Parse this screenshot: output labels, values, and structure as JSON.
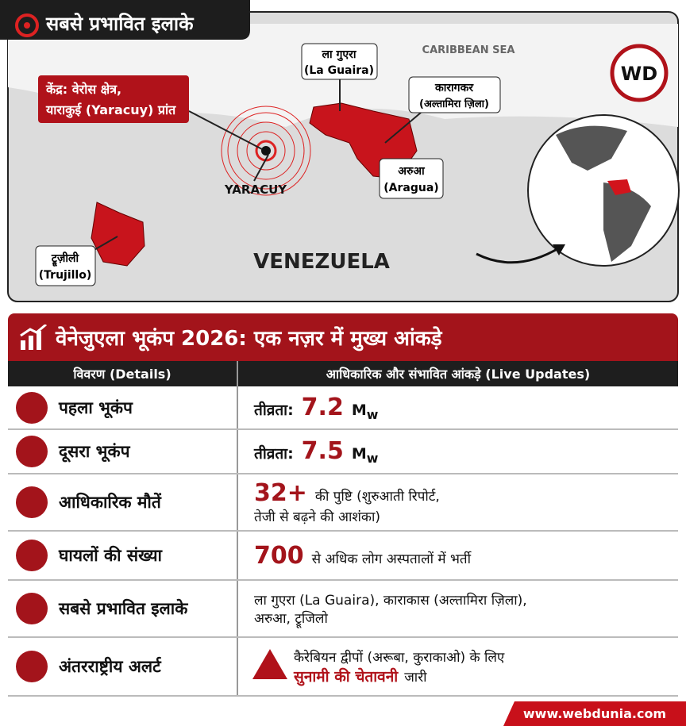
{
  "map": {
    "title": "सबसे प्रभावित इलाके",
    "logo": "WD",
    "sea": "CARIBBEAN SEA",
    "country": "VENEZUELA",
    "epicenter": "YARACUY",
    "center_label": [
      "केंद्र: वेरोस क्षेत्र,",
      "याराकुई (Yaracuy) प्रांत"
    ],
    "la_guaira": [
      "ला गुएरा",
      "(La Guaira)"
    ],
    "caracas": [
      "कारागकर",
      "(अल्तामिरा ज़िला)"
    ],
    "aragua": [
      "अरुआ",
      "(Aragua)"
    ],
    "trujillo": [
      "ट्रूज़ीली",
      "(Trujillo)"
    ]
  },
  "table": {
    "title": "वेनेजुएला भूकंप 2026: एक नज़र में मुख्य आंकड़े",
    "headers": [
      "विवरण (Details)",
      "आधिकारिक और संभावित आंकड़े (Live Updates)"
    ],
    "rows": [
      {
        "label": "पहला भूकंप",
        "prefix": "तीव्रता:",
        "value": "7.2",
        "unit": "M",
        "unit_sub": "w"
      },
      {
        "label": "दूसरा भूकंप",
        "prefix": "तीव्रता:",
        "value": "7.5",
        "unit": "M",
        "unit_sub": "w"
      },
      {
        "label": "आधिकारिक मौतें",
        "value": "32+",
        "text": "की पुष्टि (शुरुआती रिपोर्ट,",
        "text2": "तेजी से बढ़ने की आशंका)"
      },
      {
        "label": "घायलों की संख्या",
        "value": "700",
        "text": "से अधिक लोग अस्पतालों में भर्ती"
      },
      {
        "label": "सबसे प्रभावित इलाके",
        "text": "ला गुएरा (La Guaira), काराकास (अल्तामिरा ज़िला),",
        "text2": "अरुआ, ट्रूजिलो"
      },
      {
        "label": "अंतरराष्ट्रीय अलर्ट",
        "text": "कैरेबियन द्वीपों (अरूबा, कुराकाओ) के लिए",
        "highlight": "सुनामी की चेतावनी",
        "text2": "जारी"
      }
    ]
  },
  "footer": "www.webdunia.com"
}
